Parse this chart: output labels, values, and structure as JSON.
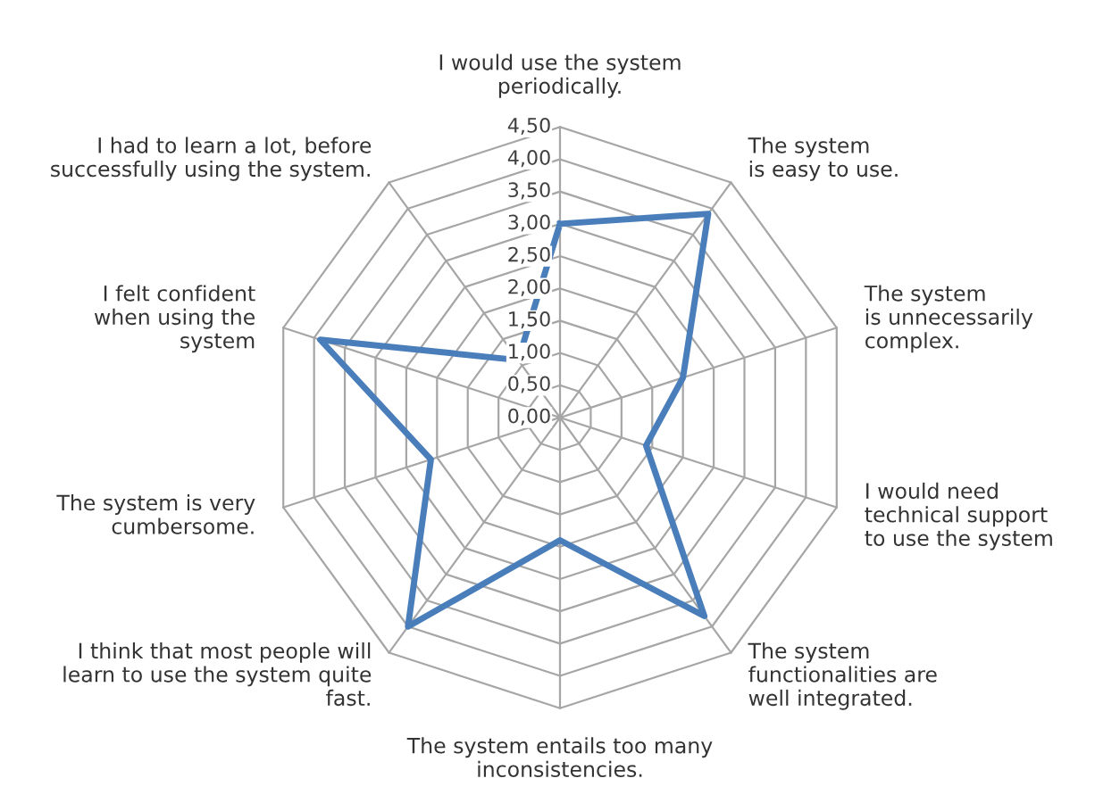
{
  "chart_data": {
    "type": "radar",
    "categories": [
      "I would use the system\nperiodically.",
      "The system\nis easy to use.",
      "The system\nis unnecessarily\ncomplex.",
      "I would need\ntechnical support\nto use the system",
      "The system\nfunctionalities are\nwell integrated.",
      "The system entails too many\ninconsistencies.",
      "I think that most people will\nlearn to use the system quite\nfast.",
      "The system is very\ncumbersome.",
      "I felt confident\nwhen using the\nsystem",
      "I had to learn a lot, before\nsuccessfully using the system."
    ],
    "series": [
      {
        "color": "#4a7ebb",
        "values": [
          3.0,
          3.9,
          2.0,
          1.4,
          3.8,
          1.9,
          4.0,
          2.1,
          3.9,
          1.1
        ]
      }
    ],
    "ylim": [
      0,
      4.5
    ],
    "yticks": [
      {
        "value": 0,
        "label": "0,00"
      },
      {
        "value": 0.5,
        "label": "0,50"
      },
      {
        "value": 1,
        "label": "1,00"
      },
      {
        "value": 1.5,
        "label": "1,50"
      },
      {
        "value": 2,
        "label": "2,00"
      },
      {
        "value": 2.5,
        "label": "2,50"
      },
      {
        "value": 3,
        "label": "3,00"
      },
      {
        "value": 3.5,
        "label": "3,50"
      },
      {
        "value": 4,
        "label": "4,00"
      },
      {
        "value": 4.5,
        "label": "4,50"
      }
    ],
    "grid": true,
    "marker": "none",
    "line_style": "solid"
  }
}
